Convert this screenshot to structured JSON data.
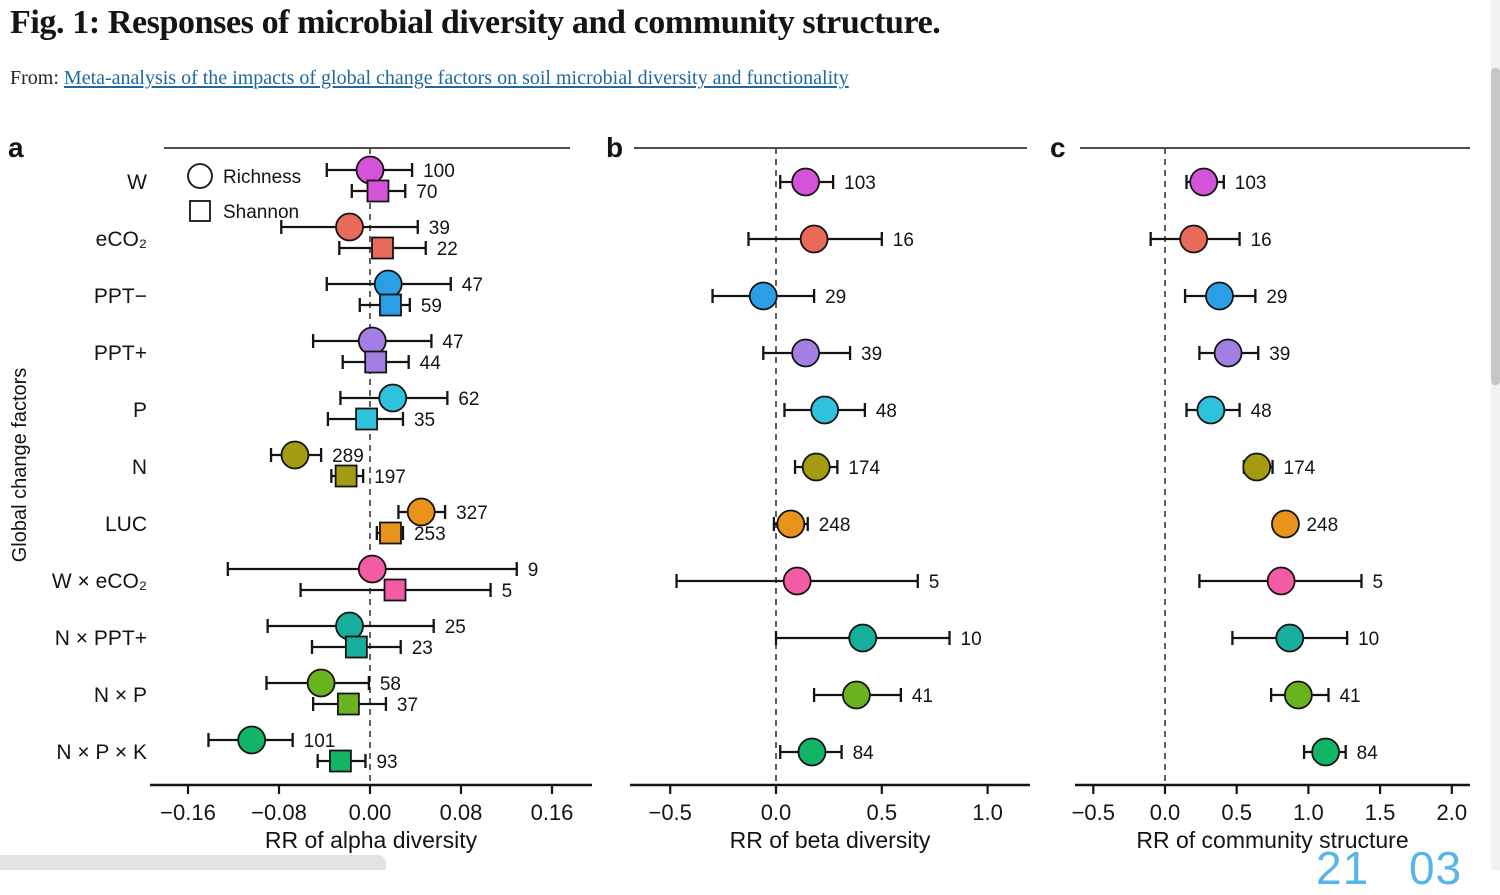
{
  "header": {
    "title": "Fig. 1: Responses of microbial diversity and community structure.",
    "from_label": "From:",
    "link_text": "Meta-analysis of the impacts of global change factors on soil microbial diversity and functionality"
  },
  "watermark": "21 03",
  "colors": {
    "link": "#20699e",
    "axis": "#141414",
    "watermark": "#58b5ea"
  },
  "chart_data": {
    "type": "forest-dot-plot",
    "ylabel": "Global change factors",
    "categories": [
      "W",
      "eCO₂",
      "PPT−",
      "PPT+",
      "P",
      "N",
      "LUC",
      "W × eCO₂",
      "N × PPT+",
      "N × P",
      "N × P × K"
    ],
    "factor_colors": [
      "#d553d8",
      "#e96a58",
      "#2b9fe6",
      "#a47fe3",
      "#2fc2dd",
      "#a59b10",
      "#e8941a",
      "#f45ba5",
      "#16ae9d",
      "#69b41e",
      "#12b565"
    ],
    "legend": [
      {
        "marker": "circle",
        "label": "Richness"
      },
      {
        "marker": "square",
        "label": "Shannon"
      }
    ],
    "panels": [
      {
        "letter": "a",
        "xlabel": "RR of alpha diversity",
        "tick_values": [
          -0.16,
          -0.08,
          0,
          0.08,
          0.16
        ],
        "tick_labels": [
          "−0.16",
          "−0.08",
          "0.00",
          "0.08",
          "0.16"
        ],
        "series": [
          {
            "name": "Richness",
            "marker": "circle",
            "points": [
              {
                "v": 0.0,
                "lo": -0.038,
                "hi": 0.037,
                "n": 100
              },
              {
                "v": -0.018,
                "lo": -0.078,
                "hi": 0.042,
                "n": 39
              },
              {
                "v": 0.016,
                "lo": -0.038,
                "hi": 0.071,
                "n": 47
              },
              {
                "v": 0.002,
                "lo": -0.05,
                "hi": 0.054,
                "n": 47
              },
              {
                "v": 0.02,
                "lo": -0.026,
                "hi": 0.068,
                "n": 62
              },
              {
                "v": -0.066,
                "lo": -0.087,
                "hi": -0.043,
                "n": 289
              },
              {
                "v": 0.045,
                "lo": 0.025,
                "hi": 0.066,
                "n": 327
              },
              {
                "v": 0.002,
                "lo": -0.125,
                "hi": 0.129,
                "n": 9
              },
              {
                "v": -0.018,
                "lo": -0.09,
                "hi": 0.056,
                "n": 25
              },
              {
                "v": -0.043,
                "lo": -0.091,
                "hi": -0.001,
                "n": 58
              },
              {
                "v": -0.104,
                "lo": -0.142,
                "hi": -0.068,
                "n": 101
              }
            ]
          },
          {
            "name": "Shannon",
            "marker": "square",
            "points": [
              {
                "v": 0.007,
                "lo": -0.016,
                "hi": 0.031,
                "n": 70
              },
              {
                "v": 0.011,
                "lo": -0.027,
                "hi": 0.049,
                "n": 22
              },
              {
                "v": 0.018,
                "lo": -0.009,
                "hi": 0.035,
                "n": 59
              },
              {
                "v": 0.005,
                "lo": -0.024,
                "hi": 0.034,
                "n": 44
              },
              {
                "v": -0.003,
                "lo": -0.037,
                "hi": 0.029,
                "n": 35
              },
              {
                "v": -0.021,
                "lo": -0.034,
                "hi": -0.006,
                "n": 197
              },
              {
                "v": 0.018,
                "lo": 0.006,
                "hi": 0.029,
                "n": 253
              },
              {
                "v": 0.022,
                "lo": -0.061,
                "hi": 0.106,
                "n": 5
              },
              {
                "v": -0.012,
                "lo": -0.051,
                "hi": 0.027,
                "n": 23
              },
              {
                "v": -0.019,
                "lo": -0.05,
                "hi": 0.014,
                "n": 37
              },
              {
                "v": -0.026,
                "lo": -0.046,
                "hi": -0.004,
                "n": 93
              }
            ]
          }
        ]
      },
      {
        "letter": "b",
        "xlabel": "RR of beta diversity",
        "tick_values": [
          -0.5,
          0,
          0.5,
          1.0
        ],
        "tick_labels": [
          "−0.5",
          "0.0",
          "0.5",
          "1.0"
        ],
        "series": [
          {
            "name": "Richness",
            "marker": "circle",
            "points": [
              {
                "v": 0.14,
                "lo": 0.02,
                "hi": 0.27,
                "n": 103
              },
              {
                "v": 0.18,
                "lo": -0.13,
                "hi": 0.5,
                "n": 16
              },
              {
                "v": -0.06,
                "lo": -0.3,
                "hi": 0.18,
                "n": 29
              },
              {
                "v": 0.14,
                "lo": -0.06,
                "hi": 0.35,
                "n": 39
              },
              {
                "v": 0.23,
                "lo": 0.04,
                "hi": 0.42,
                "n": 48
              },
              {
                "v": 0.19,
                "lo": 0.09,
                "hi": 0.29,
                "n": 174
              },
              {
                "v": 0.07,
                "lo": -0.01,
                "hi": 0.15,
                "n": 248
              },
              {
                "v": 0.1,
                "lo": -0.47,
                "hi": 0.67,
                "n": 5
              },
              {
                "v": 0.41,
                "lo": 0.0,
                "hi": 0.82,
                "n": 10
              },
              {
                "v": 0.38,
                "lo": 0.18,
                "hi": 0.59,
                "n": 41
              },
              {
                "v": 0.17,
                "lo": 0.02,
                "hi": 0.31,
                "n": 84
              }
            ]
          }
        ]
      },
      {
        "letter": "c",
        "xlabel": "RR of community structure",
        "tick_values": [
          -0.5,
          0,
          0.5,
          1.0,
          1.5,
          2.0
        ],
        "tick_labels": [
          "−0.5",
          "0.0",
          "0.5",
          "1.0",
          "1.5",
          "2.0"
        ],
        "series": [
          {
            "name": "Richness",
            "marker": "circle",
            "points": [
              {
                "v": 0.27,
                "lo": 0.15,
                "hi": 0.41,
                "n": 103
              },
              {
                "v": 0.2,
                "lo": -0.1,
                "hi": 0.52,
                "n": 16
              },
              {
                "v": 0.38,
                "lo": 0.14,
                "hi": 0.63,
                "n": 29
              },
              {
                "v": 0.44,
                "lo": 0.24,
                "hi": 0.65,
                "n": 39
              },
              {
                "v": 0.32,
                "lo": 0.15,
                "hi": 0.52,
                "n": 48
              },
              {
                "v": 0.64,
                "lo": 0.55,
                "hi": 0.75,
                "n": 174
              },
              {
                "v": 0.84,
                "lo": 0.77,
                "hi": 0.91,
                "n": 248
              },
              {
                "v": 0.81,
                "lo": 0.24,
                "hi": 1.37,
                "n": 5
              },
              {
                "v": 0.87,
                "lo": 0.47,
                "hi": 1.27,
                "n": 10
              },
              {
                "v": 0.93,
                "lo": 0.74,
                "hi": 1.14,
                "n": 41
              },
              {
                "v": 1.12,
                "lo": 0.97,
                "hi": 1.26,
                "n": 84
              }
            ]
          }
        ]
      }
    ]
  }
}
